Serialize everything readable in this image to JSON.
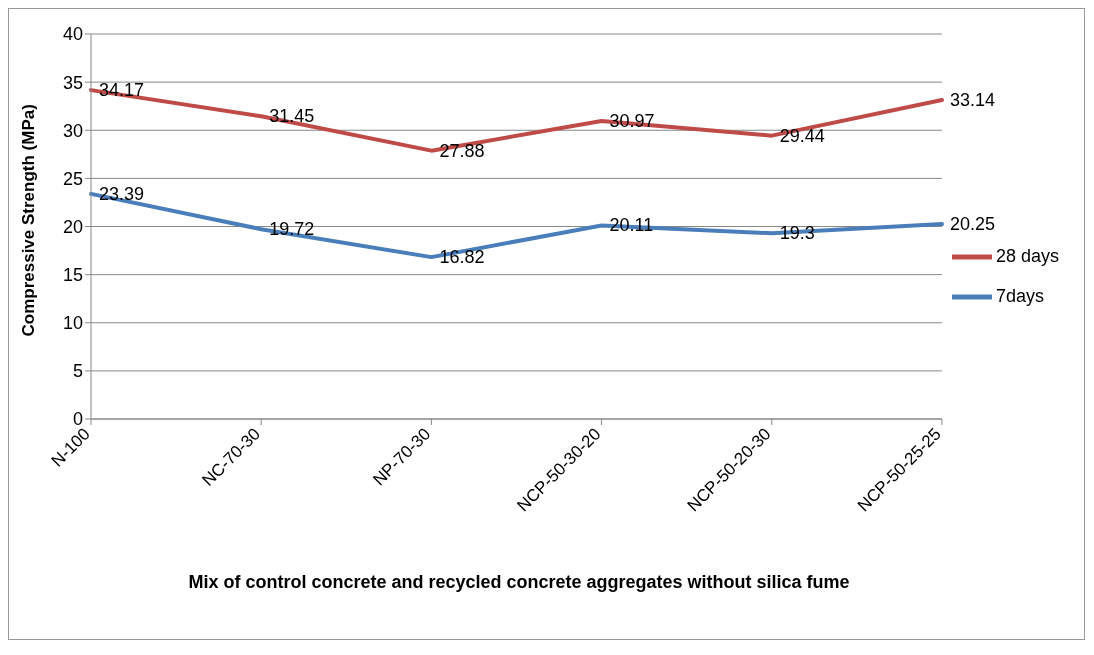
{
  "chart_data": {
    "type": "line",
    "xlabel": "Mix  of control concrete and  recycled concrete aggregates without silica fume",
    "ylabel": "Compressive Strength (MPa)",
    "categories": [
      "N-100",
      "NC-70-30",
      "NP-70-30",
      "NCP-50-30-20",
      "NCP-50-20-30",
      "NCP-50-25-25"
    ],
    "series": [
      {
        "name": "7days",
        "color": "#4a7ebb",
        "values": [
          23.39,
          19.72,
          16.82,
          20.11,
          19.3,
          20.25
        ]
      },
      {
        "name": "28 days",
        "color": "#be4b48",
        "values": [
          34.17,
          31.45,
          27.88,
          30.97,
          29.44,
          33.14
        ]
      }
    ],
    "ylim": [
      0,
      40
    ],
    "yticks": [
      0,
      5,
      10,
      15,
      20,
      25,
      30,
      35,
      40
    ],
    "grid": "y",
    "legend": "right",
    "marker": "none",
    "line_style": "solid",
    "data_labels": true
  }
}
